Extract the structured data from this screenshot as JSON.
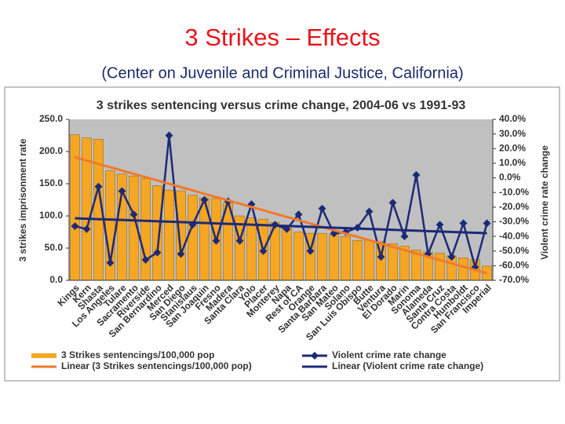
{
  "title": "3 Strikes – Effects",
  "subtitle": "(Center on Juvenile and Criminal Justice, California)",
  "chart_data": {
    "type": "bar",
    "title": "3 strikes sentencing versus crime change, 2004-06 vs 1991-93",
    "y_label": "3 strikes imprisonment rate",
    "y2_label": "Violent crime rate change",
    "categories": [
      "Kings",
      "Kern",
      "Shasta",
      "Los Angeles",
      "Tulare",
      "Sacramento",
      "Riverside",
      "San Bernardino",
      "Merced",
      "San Diego",
      "Stanislaus",
      "San Joaquin",
      "Fresno",
      "Madera",
      "Santa Clara",
      "Yolo",
      "Placer",
      "Monterey",
      "Napa",
      "Rest of CA",
      "Orange",
      "Santa Barbara",
      "San Mateo",
      "Solano",
      "San Luis Obispo",
      "Butte",
      "Ventura",
      "El Dorado",
      "Marin",
      "Sonoma",
      "Alameda",
      "Santa Cruz",
      "Contra Costa",
      "Humboldt",
      "San Francisco",
      "Imperial"
    ],
    "series": [
      {
        "name": "3 Strikes sentencings/100,000 pop",
        "color": "#f5a623",
        "type": "bar",
        "values": [
          226,
          221,
          219,
          170,
          165,
          162,
          158,
          147,
          140,
          139,
          132,
          128,
          127,
          120,
          100,
          97,
          95,
          90,
          85,
          75,
          73,
          73,
          72,
          68,
          62,
          62,
          60,
          57,
          53,
          47,
          44,
          42,
          38,
          35,
          32,
          22
        ]
      },
      {
        "name": "Violent crime rate change",
        "color": "#1c2a78",
        "type": "line",
        "axis": "y2",
        "values": [
          -33,
          -35,
          -6,
          -58,
          -9,
          -25,
          -56,
          -51,
          29,
          -52,
          -32,
          -15,
          -43,
          -16,
          -43,
          -18,
          -50,
          -32,
          -35,
          -25,
          -50,
          -21,
          -38,
          -37,
          -34,
          -23,
          -54,
          -17,
          -40,
          2,
          -52,
          -32,
          -54,
          -31,
          -61,
          -31
        ]
      }
    ],
    "trendlines": [
      {
        "name": "Linear (3 Strikes sentencings/100,000 pop)",
        "series": 0,
        "color": "#f07a2a"
      },
      {
        "name": "Linear (Violent crime rate change)",
        "series": 1,
        "color": "#1c2a78"
      }
    ],
    "ylim": [
      0,
      250
    ],
    "yticks": [
      {
        "value": 0,
        "label": "0.0"
      },
      {
        "value": 50,
        "label": "50.0"
      },
      {
        "value": 100,
        "label": "100.0"
      },
      {
        "value": 150,
        "label": "150.0"
      },
      {
        "value": 200,
        "label": "200.0"
      },
      {
        "value": 250,
        "label": "250.0"
      }
    ],
    "y2lim": [
      -70,
      40
    ],
    "y2ticks": [
      {
        "value": 40,
        "label": "40.0%"
      },
      {
        "value": 30,
        "label": "30.0%"
      },
      {
        "value": 20,
        "label": "20.0%"
      },
      {
        "value": 10,
        "label": "10.0%"
      },
      {
        "value": 0,
        "label": "0.0%"
      },
      {
        "value": -10,
        "label": "-10.0%"
      },
      {
        "value": -20,
        "label": "-20.0%"
      },
      {
        "value": -30,
        "label": "-30.0%"
      },
      {
        "value": -40,
        "label": "-40.0%"
      },
      {
        "value": -50,
        "label": "-50.0%"
      },
      {
        "value": -60,
        "label": "-60.0%"
      },
      {
        "value": -70,
        "label": "-70.0%"
      }
    ],
    "plot_background": "#c0c0c0"
  }
}
